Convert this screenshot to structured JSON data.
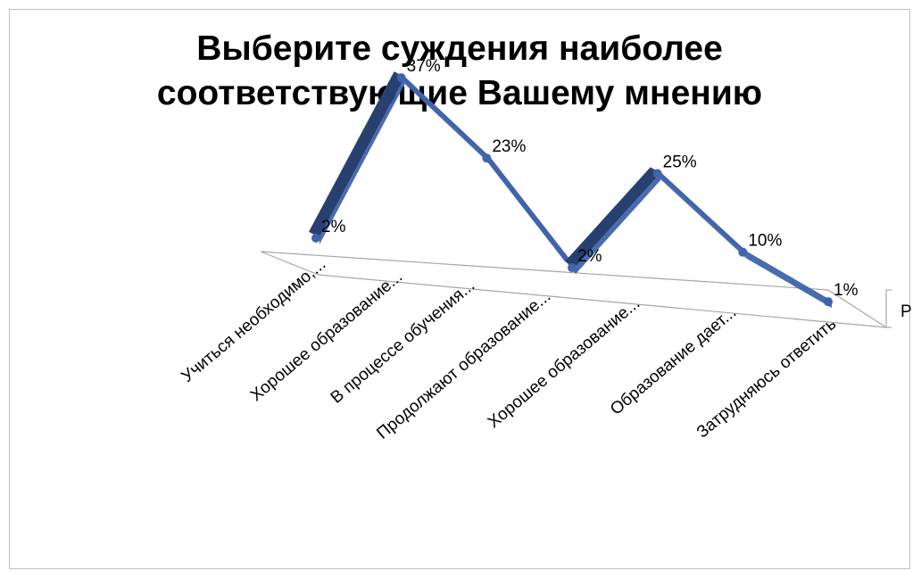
{
  "chart_data": {
    "type": "line",
    "title_lines": [
      "Выберите суждения наиболее",
      "соответствующие Вашему мнению"
    ],
    "categories": [
      "Учиться необходимо,...",
      "Хорошее образование...",
      "В процессе обучения...",
      "Продолжают образование...",
      "Хорошее образование...",
      "Образование дает...",
      "Затрудняюсь ответить"
    ],
    "values": [
      2,
      37,
      23,
      2,
      25,
      10,
      1
    ],
    "data_labels": [
      "2%",
      "37%",
      "23%",
      "2%",
      "25%",
      "10%",
      "1%"
    ],
    "series": [
      {
        "values": [
          2,
          37,
          23,
          2,
          25,
          10,
          1
        ]
      }
    ],
    "series_axis_label": "Р",
    "ylim": [
      0,
      40
    ],
    "style": "3d-line",
    "colors": {
      "line": "#3f64ad",
      "line_dark": "#27406f",
      "floor": "#a6a6a6"
    }
  }
}
